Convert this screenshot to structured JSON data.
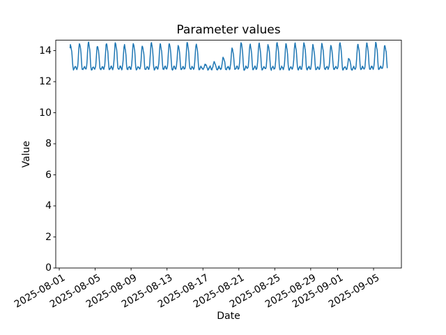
{
  "chart_data": {
    "type": "line",
    "title": "Parameter values",
    "xlabel": "Date",
    "ylabel": "Value",
    "line_color": "#1f77b4",
    "axis_color": "#000000",
    "background_color": "#ffffff",
    "grid": false,
    "legend": null,
    "x_epoch": "2025-08-01",
    "x_tick_labels": [
      "2025-08-01",
      "2025-08-05",
      "2025-08-09",
      "2025-08-13",
      "2025-08-17",
      "2025-08-21",
      "2025-08-25",
      "2025-08-29",
      "2025-09-01",
      "2025-09-05"
    ],
    "y_ticks": [
      0,
      2,
      4,
      6,
      8,
      10,
      12,
      14
    ],
    "ylim": [
      0,
      14.67
    ],
    "xlim_days": [
      -0.39,
      38.1
    ],
    "sample_step_hours": 0.75,
    "series": [
      {
        "name": "parameter-values",
        "baseline": 12.75,
        "start_date": "2025-08-02",
        "start_hour": 5,
        "end_date": "2025-09-06",
        "end_hour": 13,
        "waveform": {
          "peak_hour": 6,
          "peak_sigma_h": 2.5,
          "shoulder_offset_h": 4,
          "shoulder_amp_frac": 0.38,
          "shoulder_sigma_h": 1.4,
          "valley_bump_offset_h": 13,
          "valley_bump_amp": 0.22,
          "valley_bump_sigma_h": 2.0,
          "noise_amp": 0.05
        },
        "daily_peaks": [
          {
            "date": "2025-08-02",
            "peak": 14.35
          },
          {
            "date": "2025-08-03",
            "peak": 14.45
          },
          {
            "date": "2025-08-04",
            "peak": 14.55
          },
          {
            "date": "2025-08-05",
            "peak": 14.3
          },
          {
            "date": "2025-08-06",
            "peak": 14.45
          },
          {
            "date": "2025-08-07",
            "peak": 14.5
          },
          {
            "date": "2025-08-08",
            "peak": 14.35
          },
          {
            "date": "2025-08-09",
            "peak": 14.45
          },
          {
            "date": "2025-08-10",
            "peak": 14.3
          },
          {
            "date": "2025-08-11",
            "peak": 14.5
          },
          {
            "date": "2025-08-12",
            "peak": 14.4
          },
          {
            "date": "2025-08-13",
            "peak": 14.45
          },
          {
            "date": "2025-08-14",
            "peak": 14.3
          },
          {
            "date": "2025-08-15",
            "peak": 14.5
          },
          {
            "date": "2025-08-16",
            "peak": 14.4
          },
          {
            "date": "2025-08-17",
            "peak": 13.1
          },
          {
            "date": "2025-08-18",
            "peak": 13.25
          },
          {
            "date": "2025-08-19",
            "peak": 13.55
          },
          {
            "date": "2025-08-20",
            "peak": 14.15
          },
          {
            "date": "2025-08-21",
            "peak": 14.5
          },
          {
            "date": "2025-08-22",
            "peak": 14.4
          },
          {
            "date": "2025-08-23",
            "peak": 14.45
          },
          {
            "date": "2025-08-24",
            "peak": 14.35
          },
          {
            "date": "2025-08-25",
            "peak": 14.5
          },
          {
            "date": "2025-08-26",
            "peak": 14.4
          },
          {
            "date": "2025-08-27",
            "peak": 14.45
          },
          {
            "date": "2025-08-28",
            "peak": 14.5
          },
          {
            "date": "2025-08-29",
            "peak": 14.35
          },
          {
            "date": "2025-08-30",
            "peak": 14.45
          },
          {
            "date": "2025-08-31",
            "peak": 14.3
          },
          {
            "date": "2025-09-01",
            "peak": 14.5
          },
          {
            "date": "2025-09-02",
            "peak": 13.5
          },
          {
            "date": "2025-09-03",
            "peak": 14.4
          },
          {
            "date": "2025-09-04",
            "peak": 14.45
          },
          {
            "date": "2025-09-05",
            "peak": 14.5
          },
          {
            "date": "2025-09-06",
            "peak": 14.35
          }
        ]
      }
    ]
  }
}
